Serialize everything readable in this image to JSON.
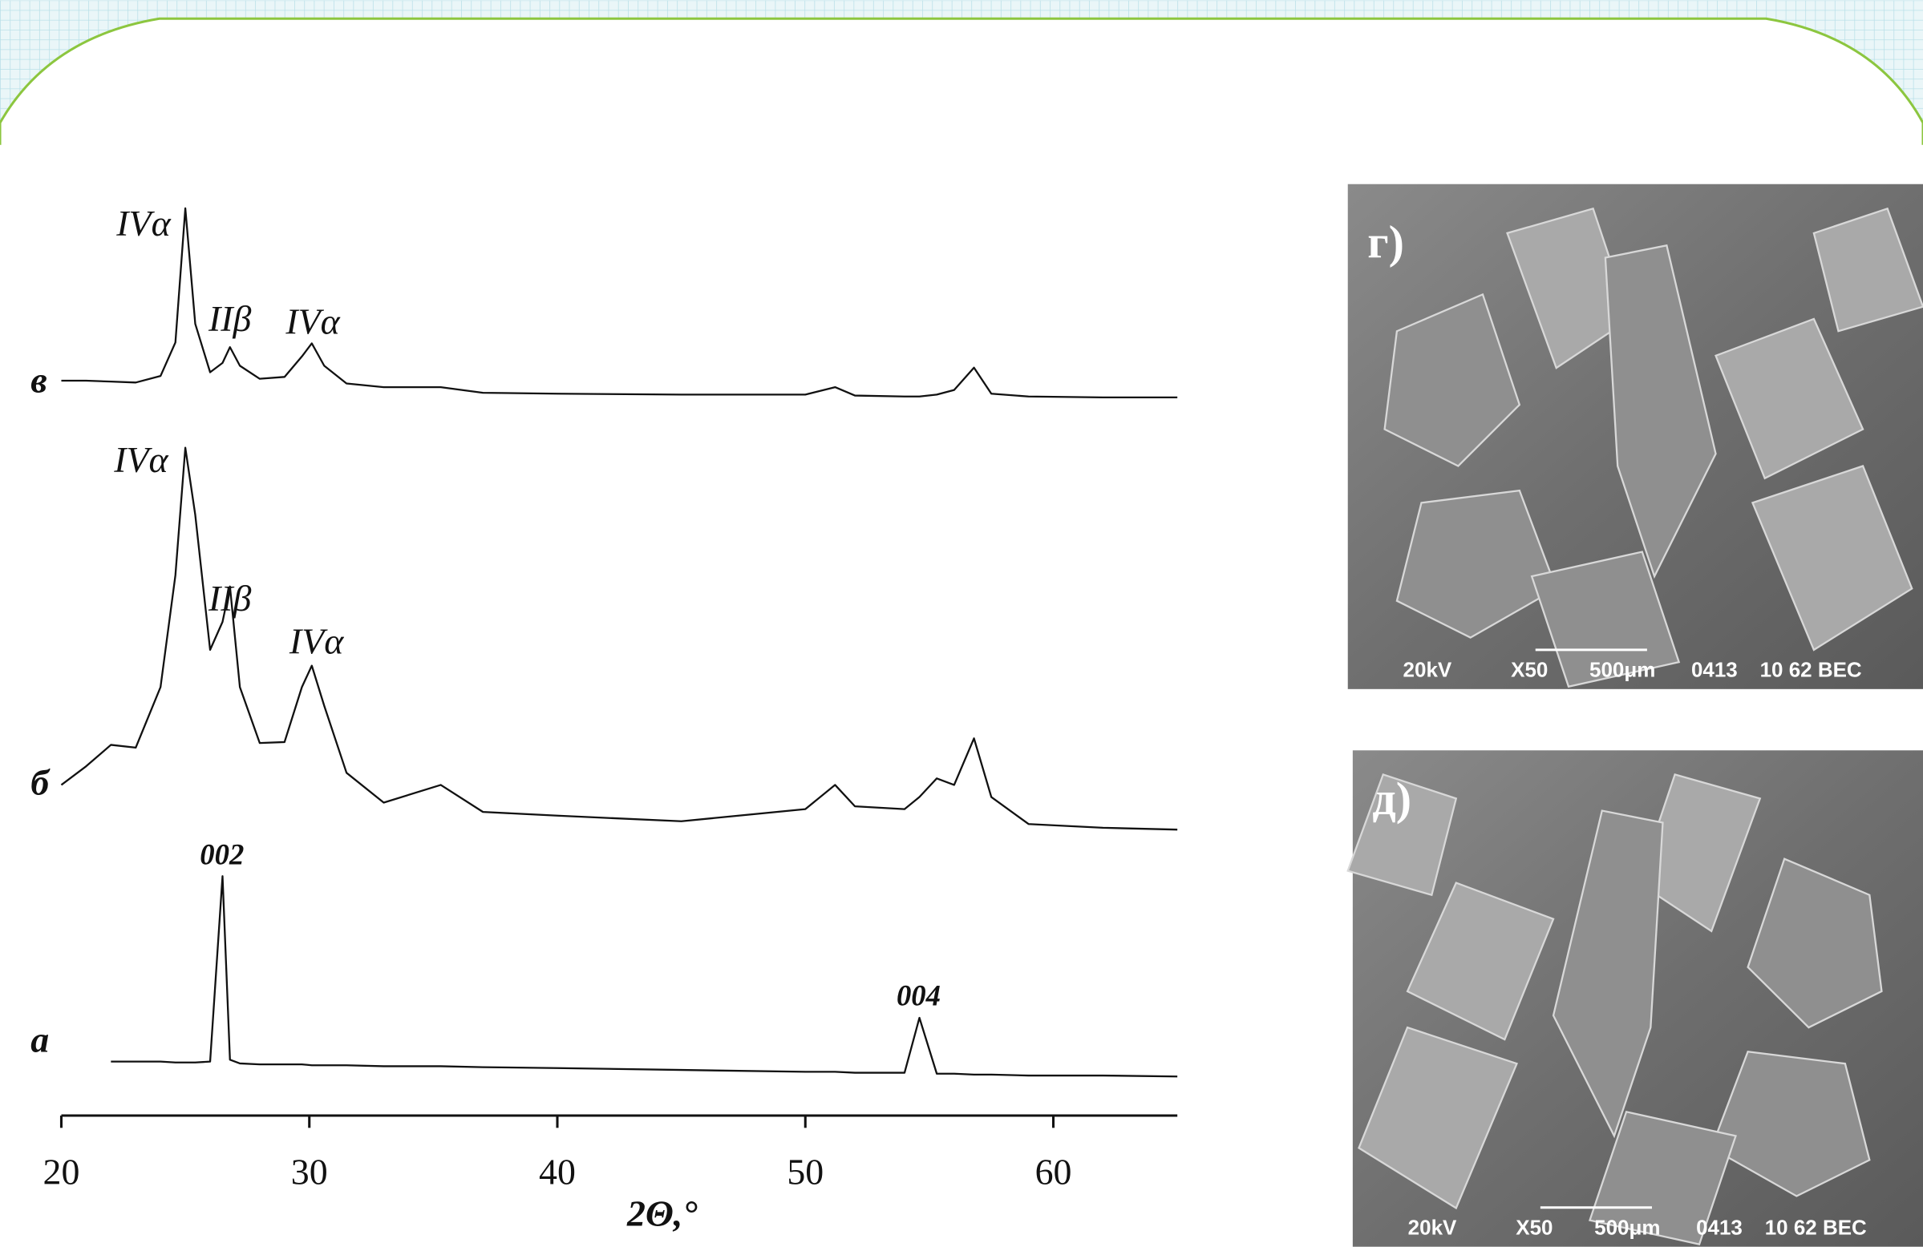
{
  "chart_data": {
    "type": "line",
    "xlabel": "2Θ,°",
    "xlim": [
      20,
      65
    ],
    "xticks": [
      20,
      30,
      40,
      50,
      60
    ],
    "ylim": [
      0,
      100
    ],
    "x": [
      20,
      21,
      22,
      23,
      24,
      24.6,
      25,
      25.4,
      26,
      26.5,
      26.8,
      27.2,
      28,
      29,
      29.7,
      30.1,
      30.6,
      31.5,
      33,
      35.3,
      37,
      40,
      45,
      50,
      51.2,
      52,
      54,
      54.6,
      55.3,
      56,
      56.8,
      57.5,
      59,
      62,
      65
    ],
    "series": [
      {
        "name": "а",
        "color": "#111111",
        "values": [
          null,
          null,
          5.8,
          5.8,
          5.8,
          5.7,
          5.7,
          5.7,
          5.8,
          25.7,
          6,
          5.6,
          5.5,
          5.5,
          5.5,
          5.4,
          5.4,
          5.4,
          5.3,
          5.3,
          5.2,
          5.1,
          4.9,
          4.7,
          4.7,
          4.6,
          4.6,
          10.5,
          4.5,
          4.5,
          4.4,
          4.4,
          4.3,
          4.3,
          4.2
        ]
      },
      {
        "name": "б",
        "color": "#111111",
        "values": [
          35.5,
          37.5,
          39.8,
          39.5,
          46,
          58,
          71.7,
          64.5,
          50,
          53,
          56.8,
          46,
          40,
          40.1,
          46,
          48.3,
          44,
          36.8,
          33.6,
          35.5,
          32.6,
          32.2,
          31.6,
          32.9,
          35.5,
          33.2,
          32.9,
          34.2,
          36.2,
          35.5,
          40.5,
          34.2,
          31.3,
          30.9,
          30.7
        ]
      },
      {
        "name": "в",
        "color": "#111111",
        "values": [
          78.9,
          78.9,
          78.8,
          78.7,
          79.4,
          83,
          97.4,
          85,
          79.8,
          80.8,
          82.5,
          80.5,
          79.1,
          79.3,
          81.5,
          82.9,
          80.5,
          78.6,
          78.2,
          78.2,
          77.6,
          77.5,
          77.4,
          77.4,
          78.2,
          77.3,
          77.2,
          77.2,
          77.4,
          77.9,
          80.3,
          77.5,
          77.2,
          77.1,
          77.1
        ]
      }
    ],
    "annotations": [
      "IVα",
      "IIβ",
      "IVα",
      "IVα",
      "IIβ",
      "IVα",
      "002",
      "004"
    ]
  },
  "images": [
    {
      "label": "г)",
      "caption": [
        "20kV",
        "X50",
        "500μm",
        "0413",
        "10 62 BEC"
      ]
    },
    {
      "label": "д)",
      "caption": [
        "20kV",
        "X50",
        "500μm",
        "0413",
        "10 62 BEC"
      ]
    }
  ]
}
